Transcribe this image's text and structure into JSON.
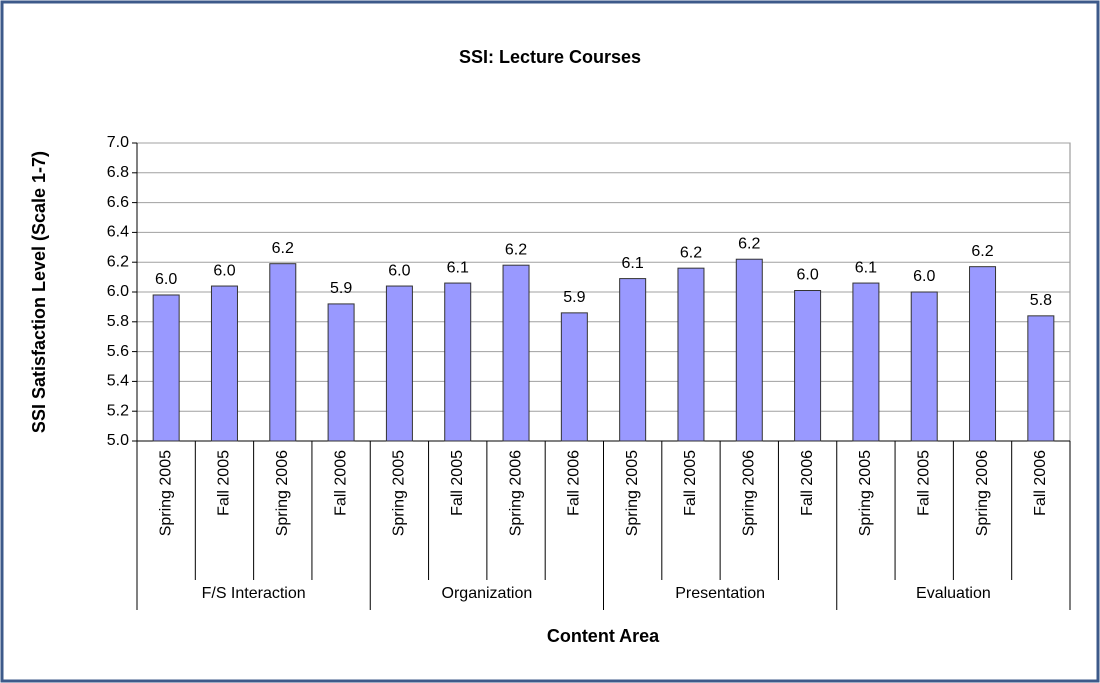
{
  "chart_data": {
    "type": "bar",
    "title": "SSI: Lecture Courses",
    "x_label": "Content Area",
    "y_label": "SSI Satisfaction Level (Scale 1-7)",
    "categories": [
      "Spring 2005",
      "Fall 2005",
      "Spring 2006",
      "Fall 2006",
      "Spring 2005",
      "Fall 2005",
      "Spring 2006",
      "Fall 2006",
      "Spring 2005",
      "Fall 2005",
      "Spring 2006",
      "Fall 2006",
      "Spring 2005",
      "Fall 2005",
      "Spring 2006",
      "Fall 2006"
    ],
    "groups": [
      "F/S Interaction",
      "Organization",
      "Presentation",
      "Evaluation"
    ],
    "values": [
      5.98,
      6.04,
      6.19,
      5.92,
      6.04,
      6.06,
      6.18,
      5.86,
      6.09,
      6.16,
      6.22,
      6.01,
      6.06,
      6.0,
      6.17,
      5.84
    ],
    "value_labels": [
      "6.0",
      "6.0",
      "6.2",
      "5.9",
      "6.0",
      "6.1",
      "6.2",
      "5.9",
      "6.1",
      "6.2",
      "6.2",
      "6.0",
      "6.1",
      "6.0",
      "6.2",
      "5.8"
    ],
    "color": "#9999ff",
    "ylim": [
      5,
      7
    ],
    "yticks": [
      {
        "value": 5,
        "label": "5.0"
      },
      5.2,
      5.4,
      5.6,
      5.8,
      {
        "value": 6,
        "label": "6.0"
      },
      6.2,
      6.4,
      6.6,
      6.8,
      {
        "value": 7,
        "label": "7.0"
      }
    ],
    "grid": true
  }
}
